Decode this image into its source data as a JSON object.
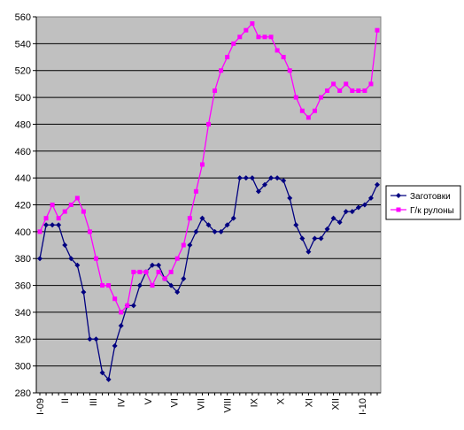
{
  "chart_data": {
    "type": "line",
    "title": "",
    "xlabel": "",
    "ylabel": "",
    "ylim": [
      280,
      560
    ],
    "y_ticks": [
      280,
      300,
      320,
      340,
      360,
      380,
      400,
      420,
      440,
      460,
      480,
      500,
      520,
      540,
      560
    ],
    "grid": true,
    "plot_background": "#c0c0c0",
    "legend_position": "right",
    "x_tick_labels": [
      {
        "label": "I-09",
        "index": 0
      },
      {
        "label": "II",
        "index": 4
      },
      {
        "label": "III",
        "index": 8.5
      },
      {
        "label": "IV",
        "index": 13
      },
      {
        "label": "V",
        "index": 17.3
      },
      {
        "label": "VI",
        "index": 21.5
      },
      {
        "label": "VII",
        "index": 25.7
      },
      {
        "label": "VIII",
        "index": 30
      },
      {
        "label": "IX",
        "index": 34.2
      },
      {
        "label": "X",
        "index": 38.5
      },
      {
        "label": "XI",
        "index": 43
      },
      {
        "label": "XII",
        "index": 47.3
      },
      {
        "label": "I-10",
        "index": 51.6
      }
    ],
    "series": [
      {
        "name": "Заготовки",
        "color": "#000080",
        "marker": "diamond",
        "values": [
          380,
          405,
          405,
          405,
          390,
          380,
          375,
          355,
          320,
          320,
          295,
          290,
          315,
          330,
          345,
          345,
          360,
          370,
          375,
          375,
          365,
          360,
          355,
          365,
          390,
          400,
          410,
          405,
          400,
          400,
          405,
          410,
          440,
          440,
          440,
          430,
          435,
          440,
          440,
          438,
          425,
          405,
          395,
          385,
          395,
          395,
          402,
          410,
          407,
          415,
          415,
          418,
          420,
          425,
          435
        ]
      },
      {
        "name": "Г/к рулоны",
        "color": "#ff00ff",
        "marker": "square",
        "values": [
          400,
          410,
          420,
          410,
          415,
          420,
          425,
          415,
          400,
          380,
          360,
          360,
          350,
          340,
          345,
          370,
          370,
          370,
          360,
          370,
          365,
          370,
          380,
          390,
          410,
          430,
          450,
          480,
          505,
          520,
          530,
          540,
          545,
          550,
          555,
          545,
          545,
          545,
          535,
          530,
          520,
          500,
          490,
          485,
          490,
          500,
          505,
          510,
          505,
          510,
          505,
          505,
          505,
          510,
          550
        ]
      }
    ]
  }
}
